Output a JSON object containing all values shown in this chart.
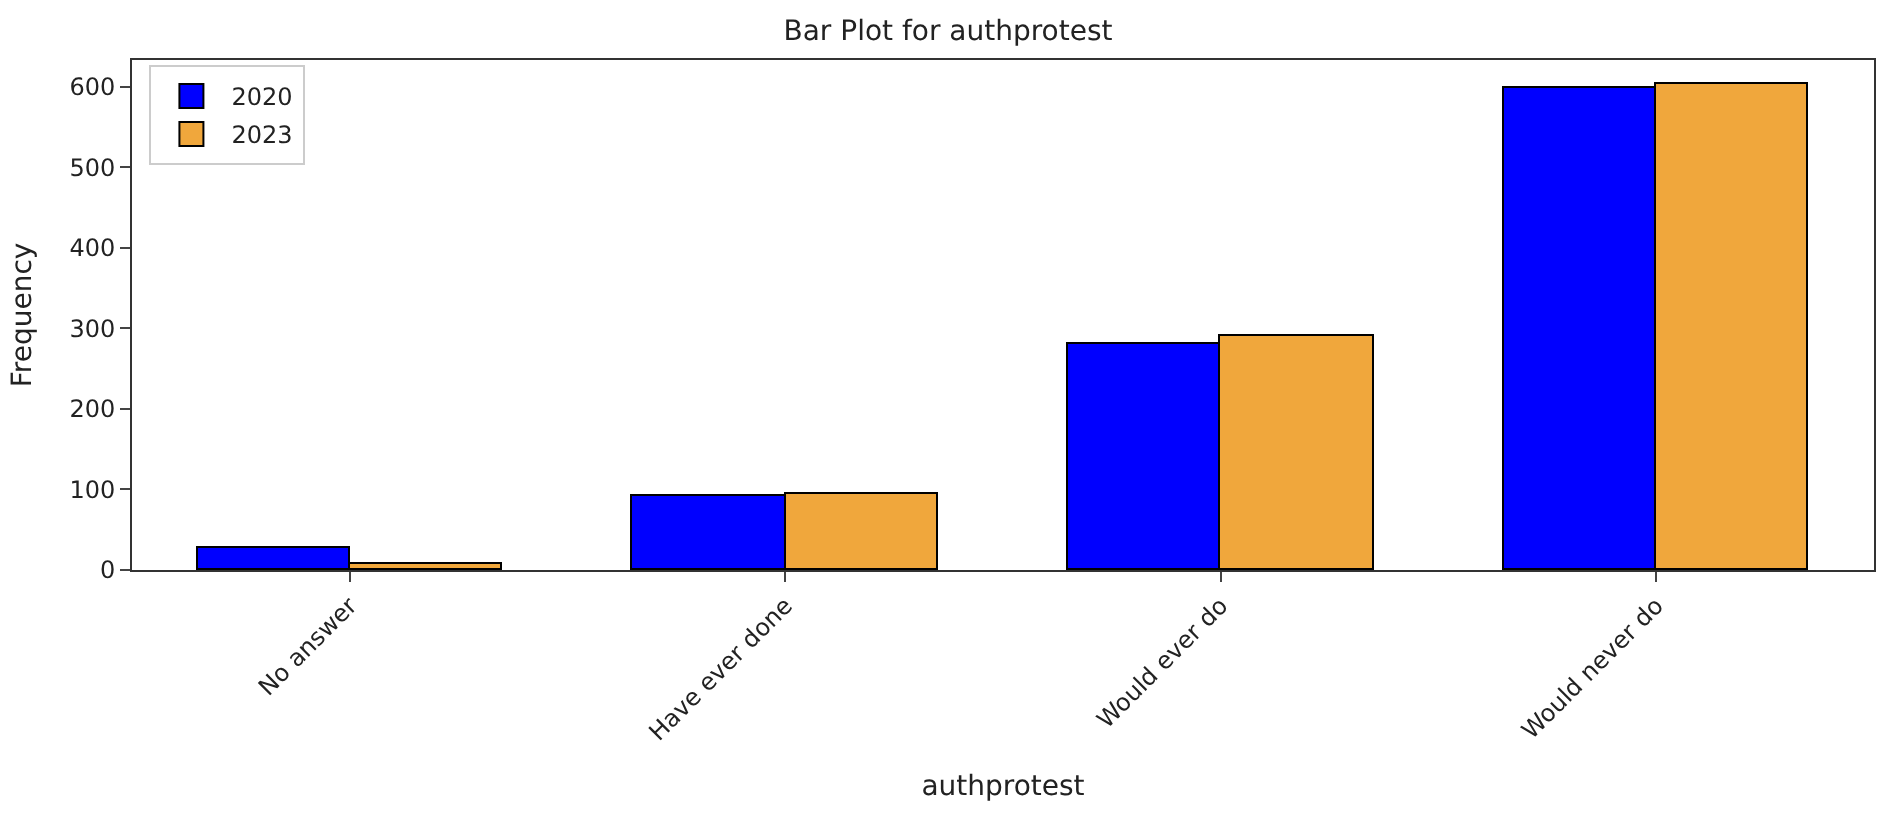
{
  "chart_data": {
    "type": "bar",
    "title": "Bar Plot for authprotest",
    "xlabel": "authprotest",
    "ylabel": "Frequency",
    "categories": [
      "No answer",
      "Have ever done",
      "Would ever do",
      "Would never do"
    ],
    "series": [
      {
        "name": "2020",
        "color": "#0000ff",
        "values": [
          27,
          91,
          281,
          599
        ]
      },
      {
        "name": "2023",
        "color": "#f0a73c",
        "values": [
          7,
          94,
          291,
          604
        ]
      }
    ],
    "ylim": [
      0,
      633
    ],
    "yticks": [
      0,
      100,
      200,
      300,
      400,
      500,
      600
    ],
    "legend": "top left"
  }
}
